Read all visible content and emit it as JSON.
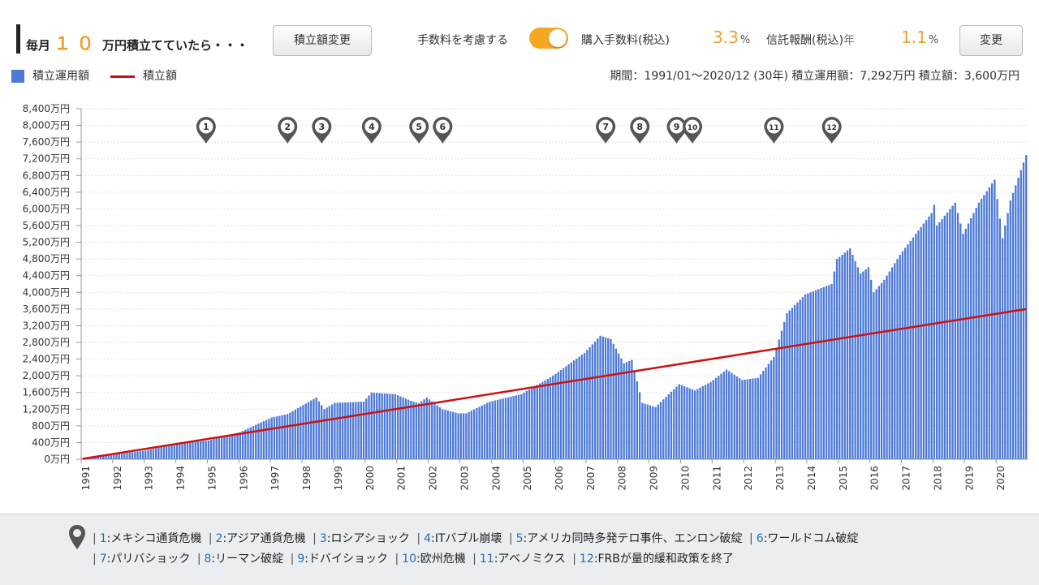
{
  "header": {
    "title_prefix": "毎月",
    "title_amount": "１０",
    "title_suffix": "万円積立てていたら・・・",
    "change_amount_button": "積立額変更",
    "fee_toggle_label": "手数料を考慮する",
    "fee_toggle_on": true,
    "buy_fee_label": "購入手数料(税込)",
    "buy_fee_value": "3.3",
    "buy_fee_unit": "%",
    "trust_fee_label": "信託報酬(税込)",
    "trust_fee_period": "年",
    "trust_fee_value": "1.1",
    "trust_fee_unit": "%",
    "change_button": "変更"
  },
  "legend": {
    "bar_label": "積立運用額",
    "line_label": "積立額"
  },
  "summary": "期間：1991/01～2020/12 (30年) 積立運用額：7,292万円 積立額：3,600万円",
  "colors": {
    "bar": "#4d7ad8",
    "line": "#cc1111",
    "accent": "#f0a030",
    "marker": "#555555"
  },
  "chart_data": {
    "type": "bar",
    "x_unit": "month",
    "x_range": [
      "1991/01",
      "2020/12"
    ],
    "x_tick_labels": [
      "1991",
      "1992",
      "1993",
      "1994",
      "1995",
      "1996",
      "1997",
      "1998",
      "1999",
      "2000",
      "2001",
      "2002",
      "2003",
      "2004",
      "2005",
      "2006",
      "2007",
      "2008",
      "2009",
      "2010",
      "2011",
      "2012",
      "2013",
      "2014",
      "2015",
      "2016",
      "2017",
      "2018",
      "2019",
      "2020"
    ],
    "y_unit": "万円",
    "ylim": [
      0,
      8400
    ],
    "y_ticks": [
      0,
      400,
      800,
      1200,
      1600,
      2000,
      2400,
      2800,
      3200,
      3600,
      4000,
      4400,
      4800,
      5200,
      5600,
      6000,
      6400,
      6800,
      7200,
      7600,
      8000,
      8400
    ],
    "y_tick_labels": [
      "0万円",
      "400万円",
      "800万円",
      "1,200万円",
      "1,600万円",
      "2,000万円",
      "2,400万円",
      "2,800万円",
      "3,200万円",
      "3,600万円",
      "4,000万円",
      "4,400万円",
      "4,800万円",
      "5,200万円",
      "5,600万円",
      "6,000万円",
      "6,400万円",
      "6,800万円",
      "7,200万円",
      "7,600万円",
      "8,000万円",
      "8,400万円"
    ],
    "grid": true,
    "bar_series_name": "積立運用額",
    "bar_anchor_values": [
      [
        "1991-01",
        10
      ],
      [
        "1993-01",
        210
      ],
      [
        "1994-01",
        370
      ],
      [
        "1995-01",
        450
      ],
      [
        "1996-01",
        650
      ],
      [
        "1997-01",
        1000
      ],
      [
        "1997-07",
        1080
      ],
      [
        "1998-01",
        1300
      ],
      [
        "1998-06",
        1480
      ],
      [
        "1998-09",
        1200
      ],
      [
        "1999-01",
        1350
      ],
      [
        "1999-12",
        1380
      ],
      [
        "2000-03",
        1600
      ],
      [
        "2000-12",
        1560
      ],
      [
        "2001-06",
        1400
      ],
      [
        "2001-09",
        1340
      ],
      [
        "2001-12",
        1480
      ],
      [
        "2002-06",
        1200
      ],
      [
        "2002-12",
        1100
      ],
      [
        "2003-03",
        1100
      ],
      [
        "2003-12",
        1380
      ],
      [
        "2004-12",
        1560
      ],
      [
        "2005-12",
        2000
      ],
      [
        "2006-12",
        2550
      ],
      [
        "2007-06",
        2960
      ],
      [
        "2007-10",
        2880
      ],
      [
        "2008-03",
        2300
      ],
      [
        "2008-06",
        2380
      ],
      [
        "2008-10",
        1350
      ],
      [
        "2009-03",
        1250
      ],
      [
        "2009-12",
        1800
      ],
      [
        "2010-06",
        1650
      ],
      [
        "2010-12",
        1850
      ],
      [
        "2011-06",
        2150
      ],
      [
        "2011-12",
        1900
      ],
      [
        "2012-06",
        1950
      ],
      [
        "2012-12",
        2450
      ],
      [
        "2013-05",
        3500
      ],
      [
        "2013-12",
        3950
      ],
      [
        "2014-10",
        4200
      ],
      [
        "2014-12",
        4800
      ],
      [
        "2015-05",
        5050
      ],
      [
        "2015-09",
        4450
      ],
      [
        "2015-12",
        4600
      ],
      [
        "2016-02",
        4000
      ],
      [
        "2016-06",
        4300
      ],
      [
        "2016-12",
        4900
      ],
      [
        "2017-12",
        5900
      ],
      [
        "2018-01",
        6100
      ],
      [
        "2018-02",
        5600
      ],
      [
        "2018-09",
        6150
      ],
      [
        "2018-12",
        5400
      ],
      [
        "2019-06",
        6150
      ],
      [
        "2019-12",
        6700
      ],
      [
        "2020-03",
        5300
      ],
      [
        "2020-06",
        6200
      ],
      [
        "2020-12",
        7292
      ]
    ],
    "line_series_name": "積立額",
    "line_points": [
      [
        "1991-01",
        10
      ],
      [
        "2020-12",
        3600
      ]
    ],
    "markers": [
      {
        "label": "1",
        "date": "1994-12"
      },
      {
        "label": "2",
        "date": "1997-07"
      },
      {
        "label": "3",
        "date": "1998-08"
      },
      {
        "label": "4",
        "date": "2000-03"
      },
      {
        "label": "5",
        "date": "2001-09"
      },
      {
        "label": "6",
        "date": "2002-06"
      },
      {
        "label": "7",
        "date": "2007-08"
      },
      {
        "label": "8",
        "date": "2008-09"
      },
      {
        "label": "9",
        "date": "2009-11"
      },
      {
        "label": "10",
        "date": "2010-05"
      },
      {
        "label": "11",
        "date": "2012-12"
      },
      {
        "label": "12",
        "date": "2014-10"
      }
    ]
  },
  "footer": {
    "events": [
      {
        "num": "1",
        "text": "メキシコ通貨危機"
      },
      {
        "num": "2",
        "text": "アジア通貨危機"
      },
      {
        "num": "3",
        "text": "ロシアショック"
      },
      {
        "num": "4",
        "text": "ITバブル崩壊"
      },
      {
        "num": "5",
        "text": "アメリカ同時多発テロ事件、エンロン破綻"
      },
      {
        "num": "6",
        "text": "ワールドコム破綻"
      },
      {
        "num": "7",
        "text": "パリバショック"
      },
      {
        "num": "8",
        "text": "リーマン破綻"
      },
      {
        "num": "9",
        "text": "ドバイショック"
      },
      {
        "num": "10",
        "text": "欧州危機"
      },
      {
        "num": "11",
        "text": "アベノミクス"
      },
      {
        "num": "12",
        "text": "FRBが量的緩和政策を終了"
      }
    ]
  }
}
